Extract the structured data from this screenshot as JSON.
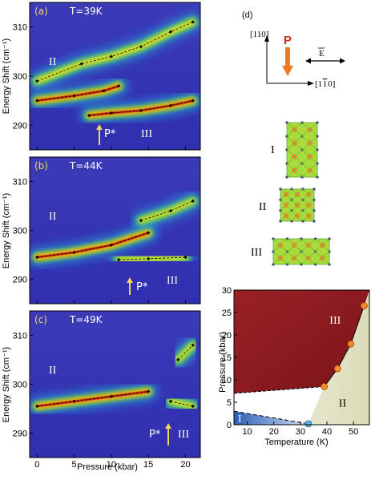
{
  "colors": {
    "background_blue": "#3535b5",
    "ridge_red": "#c81e0a",
    "ridge_orange": "#ff8c00",
    "ridge_yellow": "#f5e41e",
    "ridge_green": "#38c860",
    "ridge_cyan": "#28c8e8",
    "label_white": "#ffffff",
    "label_yellow": "#f5d85a",
    "arrow_yellow": "#f4d35e",
    "P_label_red": "#d42a10",
    "P_arrow_orange": "#f07820",
    "phase_III_maroon": "#8f1a1e",
    "phase_II_beige": "#e6e6cc",
    "phase_I_blue": "#3c6ec0",
    "marker_orange": "#f08c28",
    "marker_blue": "#5ab4e6"
  },
  "spectra": {
    "y_ticks": [
      "310",
      "300",
      "290"
    ],
    "x_ticks": [
      "0",
      "5",
      "10",
      "15",
      "20"
    ],
    "ylabel": "Energy Shift (cm⁻¹)",
    "xlabel": "Pressure (kbar)",
    "panels": [
      {
        "letter": "(a)",
        "temp": "T=39K",
        "regions": [
          "II",
          "III"
        ],
        "pstar": "P*"
      },
      {
        "letter": "(b)",
        "temp": "T=44K",
        "regions": [
          "II",
          "III"
        ],
        "pstar": "P*"
      },
      {
        "letter": "(c)",
        "temp": "T=49K",
        "regions": [
          "II",
          "III"
        ],
        "pstar": "P*"
      }
    ]
  },
  "panel_d": {
    "letter": "(d)",
    "axis_110": "[110]",
    "axis_1bar10": "[1̅ 1̅ 0]",
    "axis_1bar10_parts": {
      "a": "[1",
      "b": "1",
      "c": "0]"
    },
    "P": "P",
    "E": "E",
    "structures": [
      "I",
      "II",
      "III"
    ]
  },
  "chart_data": [
    {
      "type": "scatter",
      "title": "T=39K",
      "xlabel": "Pressure (kbar)",
      "ylabel": "Energy Shift (cm⁻¹)",
      "xlim": [
        -1,
        22
      ],
      "ylim": [
        285,
        315
      ],
      "series": [
        {
          "values": [
            [
              0,
              299
            ],
            [
              6,
              302.5
            ],
            [
              10,
              304
            ],
            [
              14,
              306
            ],
            [
              18,
              309
            ],
            [
              21,
              311
            ]
          ]
        },
        {
          "values": [
            [
              0,
              295
            ],
            [
              5,
              296
            ],
            [
              9,
              297
            ],
            [
              11,
              298
            ]
          ]
        },
        {
          "values": [
            [
              7,
              292
            ],
            [
              10,
              292.5
            ],
            [
              14,
              293
            ],
            [
              18,
              294
            ],
            [
              21,
              295
            ]
          ]
        }
      ],
      "annotations": [
        "II",
        "III",
        "P*"
      ]
    },
    {
      "type": "scatter",
      "title": "T=44K",
      "xlabel": "Pressure (kbar)",
      "ylabel": "Energy Shift (cm⁻¹)",
      "xlim": [
        -1,
        22
      ],
      "ylim": [
        285,
        315
      ],
      "series": [
        {
          "values": [
            [
              0,
              294.5
            ],
            [
              5,
              295.5
            ],
            [
              10,
              297
            ],
            [
              15,
              299.5
            ]
          ]
        },
        {
          "values": [
            [
              11,
              294
            ],
            [
              15,
              294.2
            ],
            [
              20,
              294.5
            ]
          ]
        },
        {
          "values": [
            [
              14,
              302
            ],
            [
              18,
              304
            ],
            [
              21,
              306
            ]
          ]
        }
      ],
      "annotations": [
        "II",
        "III",
        "P*"
      ]
    },
    {
      "type": "scatter",
      "title": "T=49K",
      "xlabel": "Pressure (kbar)",
      "ylabel": "Energy Shift (cm⁻¹)",
      "xlim": [
        -1,
        22
      ],
      "ylim": [
        285,
        315
      ],
      "series": [
        {
          "values": [
            [
              0,
              295.5
            ],
            [
              5,
              296.5
            ],
            [
              10,
              297.5
            ],
            [
              15,
              298.5
            ]
          ]
        },
        {
          "values": [
            [
              18,
              296.5
            ],
            [
              21,
              295.5
            ]
          ]
        },
        {
          "values": [
            [
              19,
              305
            ],
            [
              21,
              308
            ]
          ]
        }
      ],
      "annotations": [
        "II",
        "III",
        "P*"
      ]
    },
    {
      "type": "scatter",
      "xlabel": "Temperature (K)",
      "ylabel": "Pressure (kbar)",
      "xlim": [
        5,
        56
      ],
      "ylim": [
        0,
        30
      ],
      "x_ticks": [
        "10",
        "20",
        "30",
        "40",
        "50"
      ],
      "y_ticks": [
        "0",
        "5",
        "10",
        "15",
        "20",
        "25",
        "30"
      ],
      "series": [
        {
          "values": [
            [
              39,
              8.5
            ],
            [
              44,
              12.5
            ],
            [
              49,
              18
            ],
            [
              54,
              26.5
            ]
          ]
        },
        {
          "values": [
            [
              33,
              0.2
            ]
          ]
        }
      ],
      "regions": [
        "I",
        "II",
        "III"
      ]
    }
  ]
}
